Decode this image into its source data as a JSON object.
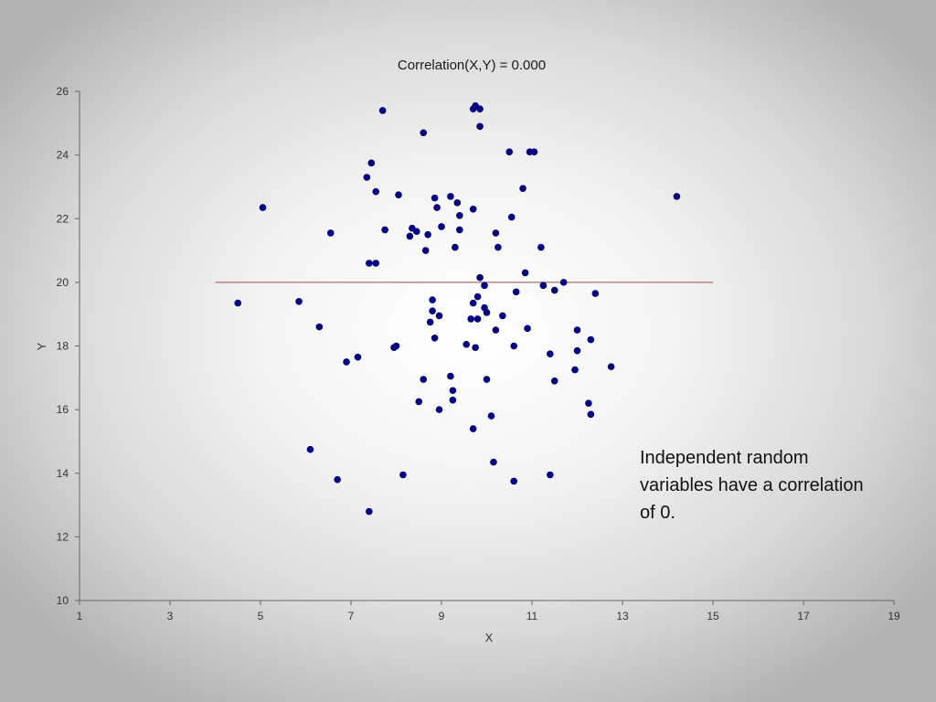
{
  "chart_data": {
    "type": "scatter",
    "title": "Correlation(X,Y) = 0.000",
    "xlabel": "X",
    "ylabel": "Y",
    "xlim": [
      1,
      19
    ],
    "ylim": [
      10,
      26
    ],
    "xticks": [
      1,
      3,
      5,
      7,
      9,
      11,
      13,
      15,
      17,
      19
    ],
    "yticks": [
      10,
      12,
      14,
      16,
      18,
      20,
      22,
      24,
      26
    ],
    "grid": false,
    "point_color": "#000080",
    "line_color": "#b07070",
    "reference_line": {
      "type": "horizontal",
      "y": 20,
      "x_start": 4,
      "x_end": 15
    },
    "points": [
      {
        "x": 7.7,
        "y": 25.4
      },
      {
        "x": 9.75,
        "y": 25.55
      },
      {
        "x": 9.7,
        "y": 25.45
      },
      {
        "x": 9.85,
        "y": 25.45
      },
      {
        "x": 9.85,
        "y": 24.9
      },
      {
        "x": 8.6,
        "y": 24.7
      },
      {
        "x": 10.5,
        "y": 24.1
      },
      {
        "x": 10.95,
        "y": 24.1
      },
      {
        "x": 11.05,
        "y": 24.1
      },
      {
        "x": 7.45,
        "y": 23.75
      },
      {
        "x": 7.35,
        "y": 23.3
      },
      {
        "x": 10.8,
        "y": 22.95
      },
      {
        "x": 7.55,
        "y": 22.85
      },
      {
        "x": 8.05,
        "y": 22.75
      },
      {
        "x": 8.85,
        "y": 22.65
      },
      {
        "x": 9.2,
        "y": 22.7
      },
      {
        "x": 14.2,
        "y": 22.7
      },
      {
        "x": 9.35,
        "y": 22.5
      },
      {
        "x": 5.05,
        "y": 22.35
      },
      {
        "x": 8.9,
        "y": 22.35
      },
      {
        "x": 9.7,
        "y": 22.3
      },
      {
        "x": 9.4,
        "y": 22.1
      },
      {
        "x": 10.55,
        "y": 22.05
      },
      {
        "x": 9.0,
        "y": 21.75
      },
      {
        "x": 8.35,
        "y": 21.7
      },
      {
        "x": 7.75,
        "y": 21.65
      },
      {
        "x": 9.4,
        "y": 21.65
      },
      {
        "x": 8.45,
        "y": 21.6
      },
      {
        "x": 6.55,
        "y": 21.55
      },
      {
        "x": 10.2,
        "y": 21.55
      },
      {
        "x": 8.3,
        "y": 21.45
      },
      {
        "x": 8.7,
        "y": 21.5
      },
      {
        "x": 9.3,
        "y": 21.1
      },
      {
        "x": 10.25,
        "y": 21.1
      },
      {
        "x": 11.2,
        "y": 21.1
      },
      {
        "x": 8.65,
        "y": 21.0
      },
      {
        "x": 7.4,
        "y": 20.6
      },
      {
        "x": 7.55,
        "y": 20.6
      },
      {
        "x": 10.85,
        "y": 20.3
      },
      {
        "x": 9.85,
        "y": 20.15
      },
      {
        "x": 11.7,
        "y": 20.0
      },
      {
        "x": 9.95,
        "y": 19.9
      },
      {
        "x": 11.25,
        "y": 19.9
      },
      {
        "x": 11.5,
        "y": 19.75
      },
      {
        "x": 10.65,
        "y": 19.7
      },
      {
        "x": 12.4,
        "y": 19.65
      },
      {
        "x": 9.8,
        "y": 19.55
      },
      {
        "x": 8.8,
        "y": 19.45
      },
      {
        "x": 4.5,
        "y": 19.35
      },
      {
        "x": 5.85,
        "y": 19.4
      },
      {
        "x": 9.7,
        "y": 19.35
      },
      {
        "x": 9.95,
        "y": 19.2
      },
      {
        "x": 8.8,
        "y": 19.1
      },
      {
        "x": 10.0,
        "y": 19.05
      },
      {
        "x": 8.95,
        "y": 18.95
      },
      {
        "x": 10.35,
        "y": 18.95
      },
      {
        "x": 9.65,
        "y": 18.85
      },
      {
        "x": 9.8,
        "y": 18.85
      },
      {
        "x": 8.75,
        "y": 18.75
      },
      {
        "x": 6.3,
        "y": 18.6
      },
      {
        "x": 10.2,
        "y": 18.5
      },
      {
        "x": 10.9,
        "y": 18.55
      },
      {
        "x": 12.0,
        "y": 18.5
      },
      {
        "x": 8.85,
        "y": 18.25
      },
      {
        "x": 12.3,
        "y": 18.2
      },
      {
        "x": 9.55,
        "y": 18.05
      },
      {
        "x": 9.75,
        "y": 17.95
      },
      {
        "x": 10.6,
        "y": 18.0
      },
      {
        "x": 7.95,
        "y": 17.95
      },
      {
        "x": 8.0,
        "y": 18.0
      },
      {
        "x": 12.0,
        "y": 17.85
      },
      {
        "x": 11.4,
        "y": 17.75
      },
      {
        "x": 7.15,
        "y": 17.65
      },
      {
        "x": 6.9,
        "y": 17.5
      },
      {
        "x": 12.75,
        "y": 17.35
      },
      {
        "x": 11.95,
        "y": 17.25
      },
      {
        "x": 9.2,
        "y": 17.05
      },
      {
        "x": 8.6,
        "y": 16.95
      },
      {
        "x": 10.0,
        "y": 16.95
      },
      {
        "x": 11.5,
        "y": 16.9
      },
      {
        "x": 9.25,
        "y": 16.6
      },
      {
        "x": 9.25,
        "y": 16.3
      },
      {
        "x": 8.5,
        "y": 16.25
      },
      {
        "x": 12.25,
        "y": 16.2
      },
      {
        "x": 8.95,
        "y": 16.0
      },
      {
        "x": 12.3,
        "y": 15.85
      },
      {
        "x": 10.1,
        "y": 15.8
      },
      {
        "x": 9.7,
        "y": 15.4
      },
      {
        "x": 6.1,
        "y": 14.75
      },
      {
        "x": 10.15,
        "y": 14.35
      },
      {
        "x": 8.15,
        "y": 13.95
      },
      {
        "x": 11.4,
        "y": 13.95
      },
      {
        "x": 6.7,
        "y": 13.8
      },
      {
        "x": 10.6,
        "y": 13.75
      },
      {
        "x": 7.4,
        "y": 12.8
      }
    ]
  },
  "caption": "Independent random variables have a correlation of 0."
}
